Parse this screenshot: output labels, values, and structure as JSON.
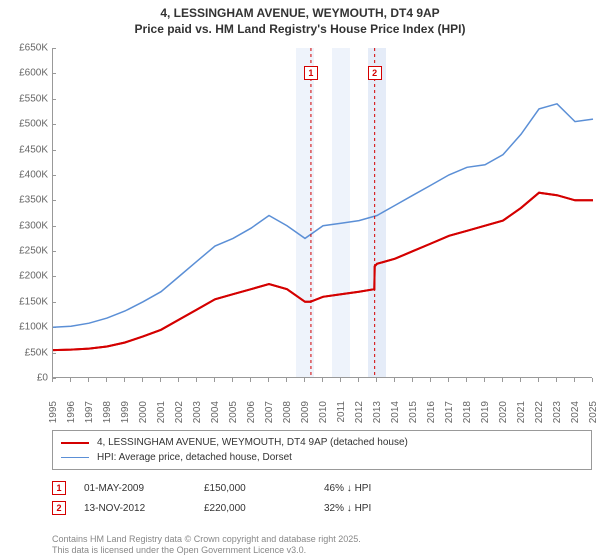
{
  "title_line1": "4, LESSINGHAM AVENUE, WEYMOUTH, DT4 9AP",
  "title_line2": "Price paid vs. HM Land Registry's House Price Index (HPI)",
  "chart": {
    "type": "line",
    "x_years": [
      1995,
      1996,
      1997,
      1998,
      1999,
      2000,
      2001,
      2002,
      2003,
      2004,
      2005,
      2006,
      2007,
      2008,
      2009,
      2010,
      2011,
      2012,
      2013,
      2014,
      2015,
      2016,
      2017,
      2018,
      2019,
      2020,
      2021,
      2022,
      2023,
      2024,
      2025
    ],
    "ylim": [
      0,
      650000
    ],
    "ytick_step": 50000,
    "ytick_prefix": "£",
    "ytick_suffix": "K",
    "background_color": "#ffffff",
    "axis_color": "#999999",
    "tick_font_size": 10,
    "series": [
      {
        "name": "price_paid",
        "label": "4, LESSINGHAM AVENUE, WEYMOUTH, DT4 9AP (detached house)",
        "color": "#d40000",
        "line_width": 2,
        "points": [
          [
            1995,
            55000
          ],
          [
            1996,
            56000
          ],
          [
            1997,
            58000
          ],
          [
            1998,
            62000
          ],
          [
            1999,
            70000
          ],
          [
            2000,
            82000
          ],
          [
            2001,
            95000
          ],
          [
            2002,
            115000
          ],
          [
            2003,
            135000
          ],
          [
            2004,
            155000
          ],
          [
            2005,
            165000
          ],
          [
            2006,
            175000
          ],
          [
            2007,
            185000
          ],
          [
            2008,
            175000
          ],
          [
            2009,
            150000
          ],
          [
            2009.3,
            150000
          ],
          [
            2010,
            160000
          ],
          [
            2011,
            165000
          ],
          [
            2012,
            170000
          ],
          [
            2012.85,
            175000
          ],
          [
            2012.87,
            220000
          ],
          [
            2013,
            225000
          ],
          [
            2014,
            235000
          ],
          [
            2015,
            250000
          ],
          [
            2016,
            265000
          ],
          [
            2017,
            280000
          ],
          [
            2018,
            290000
          ],
          [
            2019,
            300000
          ],
          [
            2020,
            310000
          ],
          [
            2021,
            335000
          ],
          [
            2022,
            365000
          ],
          [
            2023,
            360000
          ],
          [
            2024,
            350000
          ],
          [
            2025,
            350000
          ]
        ]
      },
      {
        "name": "hpi",
        "label": "HPI: Average price, detached house, Dorset",
        "color": "#5b8fd6",
        "line_width": 1.5,
        "points": [
          [
            1995,
            100000
          ],
          [
            1996,
            102000
          ],
          [
            1997,
            108000
          ],
          [
            1998,
            118000
          ],
          [
            1999,
            132000
          ],
          [
            2000,
            150000
          ],
          [
            2001,
            170000
          ],
          [
            2002,
            200000
          ],
          [
            2003,
            230000
          ],
          [
            2004,
            260000
          ],
          [
            2005,
            275000
          ],
          [
            2006,
            295000
          ],
          [
            2007,
            320000
          ],
          [
            2008,
            300000
          ],
          [
            2009,
            275000
          ],
          [
            2010,
            300000
          ],
          [
            2011,
            305000
          ],
          [
            2012,
            310000
          ],
          [
            2013,
            320000
          ],
          [
            2014,
            340000
          ],
          [
            2015,
            360000
          ],
          [
            2016,
            380000
          ],
          [
            2017,
            400000
          ],
          [
            2018,
            415000
          ],
          [
            2019,
            420000
          ],
          [
            2020,
            440000
          ],
          [
            2021,
            480000
          ],
          [
            2022,
            530000
          ],
          [
            2023,
            540000
          ],
          [
            2024,
            505000
          ],
          [
            2025,
            510000
          ]
        ]
      }
    ],
    "shaded_bands": [
      {
        "x_from": 2008.5,
        "x_to": 2009.5,
        "color": "#eef3fb"
      },
      {
        "x_from": 2010.5,
        "x_to": 2011.5,
        "color": "#eef3fb"
      },
      {
        "x_from": 2012.5,
        "x_to": 2013.5,
        "color": "#e5ecf8"
      }
    ],
    "markers": [
      {
        "id": "1",
        "x": 2009.33,
        "color": "#d40000"
      },
      {
        "id": "2",
        "x": 2012.87,
        "color": "#d40000"
      }
    ]
  },
  "legend": {
    "rows": [
      {
        "color": "#d40000",
        "width": 2,
        "label_path": "chart.series.0.label"
      },
      {
        "color": "#5b8fd6",
        "width": 1.5,
        "label_path": "chart.series.1.label"
      }
    ]
  },
  "events": [
    {
      "id": "1",
      "color": "#d40000",
      "date": "01-MAY-2009",
      "price": "£150,000",
      "delta": "46% ↓ HPI"
    },
    {
      "id": "2",
      "color": "#d40000",
      "date": "13-NOV-2012",
      "price": "£220,000",
      "delta": "32% ↓ HPI"
    }
  ],
  "footnote_line1": "Contains HM Land Registry data © Crown copyright and database right 2025.",
  "footnote_line2": "This data is licensed under the Open Government Licence v3.0."
}
